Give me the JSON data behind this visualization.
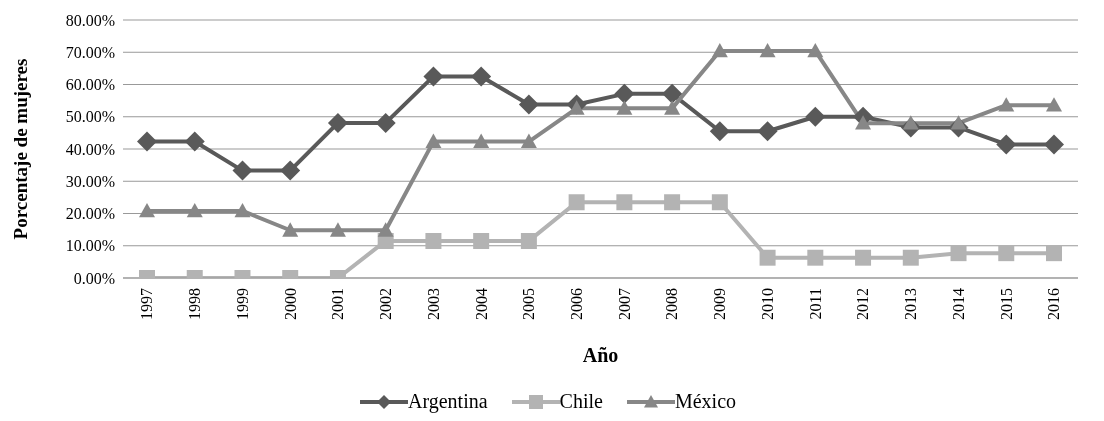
{
  "chart_data": {
    "type": "line",
    "xlabel": "Año",
    "ylabel": "Porcentaje de mujeres",
    "categories": [
      "1997",
      "1998",
      "1999",
      "2000",
      "2001",
      "2002",
      "2003",
      "2004",
      "2005",
      "2006",
      "2007",
      "2008",
      "2009",
      "2010",
      "2011",
      "2012",
      "2013",
      "2014",
      "2015",
      "2016"
    ],
    "series": [
      {
        "name": "Argentina",
        "color": "#595959",
        "marker": "diamond",
        "values": [
          42.3,
          42.3,
          33.3,
          33.3,
          48.1,
          48.1,
          62.5,
          62.5,
          53.8,
          53.8,
          57.1,
          57.1,
          45.5,
          45.5,
          50,
          50,
          46.7,
          46.7,
          41.4,
          41.4
        ]
      },
      {
        "name": "Chile",
        "color": "#b3b3b3",
        "marker": "square",
        "values": [
          0,
          0,
          0,
          0,
          0,
          11.5,
          11.5,
          11.5,
          11.5,
          23.5,
          23.5,
          23.5,
          23.5,
          6.3,
          6.3,
          6.3,
          6.3,
          7.7,
          7.7,
          7.7
        ]
      },
      {
        "name": "México",
        "color": "#878787",
        "marker": "triangle",
        "values": [
          20.8,
          20.8,
          20.8,
          14.8,
          14.8,
          14.8,
          42.3,
          42.3,
          42.3,
          52.6,
          52.6,
          52.6,
          70.4,
          70.4,
          70.4,
          48,
          48,
          48,
          53.6,
          53.6
        ]
      }
    ],
    "ylim": [
      0,
      80
    ],
    "yticks": [
      {
        "value": 0,
        "label": "0.00%"
      },
      {
        "value": 10,
        "label": "10.00%"
      },
      {
        "value": 20,
        "label": "20.00%"
      },
      {
        "value": 30,
        "label": "30.00%"
      },
      {
        "value": 40,
        "label": "40.00%"
      },
      {
        "value": 50,
        "label": "50.00%"
      },
      {
        "value": 60,
        "label": "60.00%"
      },
      {
        "value": 70,
        "label": "70.00%"
      },
      {
        "value": 80,
        "label": "80.00%"
      }
    ],
    "grid": "y",
    "legend": "bottom",
    "line_style": "solid"
  }
}
